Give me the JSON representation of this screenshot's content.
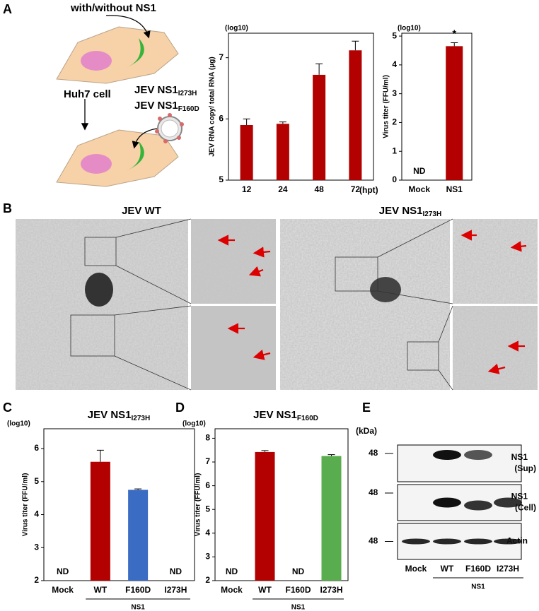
{
  "panels": {
    "a": "A",
    "b": "B",
    "c": "C",
    "d": "D",
    "e": "E"
  },
  "schematic": {
    "top_label": "with/without NS1",
    "cell_label": "Huh7 cell",
    "virus_1": {
      "main": "JEV NS1",
      "sub": "I273H"
    },
    "virus_2": {
      "main": "JEV NS1",
      "sub": "F160D"
    }
  },
  "chart_data": [
    {
      "type": "bar",
      "y_unit": "(log10)",
      "ylabel": "JEV RNA copy/ total RNA (μg)",
      "xlabel": "(hpt)",
      "categories": [
        "12",
        "24",
        "48",
        "72"
      ],
      "values": [
        5.9,
        5.92,
        6.72,
        7.12
      ],
      "errors": [
        0.1,
        0.03,
        0.18,
        0.15
      ],
      "colors": [
        "#b30000",
        "#b30000",
        "#b30000",
        "#b30000"
      ],
      "ylim": [
        5,
        7.4
      ],
      "yticks": [
        5,
        6,
        7
      ]
    },
    {
      "type": "bar",
      "y_unit": "(log10)",
      "ylabel": "Virus titer (FFU/ml)",
      "categories": [
        "Mock",
        "NS1"
      ],
      "values": [
        null,
        4.65
      ],
      "errors": [
        null,
        0.12
      ],
      "missing_label": "ND",
      "significance_marks": [
        null,
        "*"
      ],
      "colors": [
        "#b30000",
        "#b30000"
      ],
      "ylim": [
        0,
        5.1
      ],
      "yticks": [
        0,
        1,
        2,
        3,
        4,
        5
      ]
    },
    {
      "type": "bar",
      "title": {
        "main": "JEV NS1",
        "sub": "I273H"
      },
      "y_unit": "(log10)",
      "ylabel": "Virus titer (FFU/ml)",
      "categories": [
        "Mock",
        "WT",
        "F160D",
        "I273H"
      ],
      "values": [
        null,
        5.6,
        4.75,
        null
      ],
      "errors": [
        null,
        0.35,
        0.03,
        null
      ],
      "missing_label": "ND",
      "group_label": "NS1",
      "colors": [
        "#b30000",
        "#b30000",
        "#3b6cc4",
        "#5aad4e"
      ],
      "ylim": [
        2,
        6.6
      ],
      "yticks": [
        2,
        3,
        4,
        5,
        6
      ]
    },
    {
      "type": "bar",
      "title": {
        "main": "JEV NS1",
        "sub": "F160D"
      },
      "y_unit": "(log10)",
      "ylabel": "Virus titer (FFU/ml)",
      "categories": [
        "Mock",
        "WT",
        "F160D",
        "I273H"
      ],
      "values": [
        null,
        7.42,
        null,
        7.25
      ],
      "errors": [
        null,
        0.06,
        null,
        0.06
      ],
      "missing_label": "ND",
      "group_label": "NS1",
      "colors": [
        "#b30000",
        "#b30000",
        "#3b6cc4",
        "#5aad4e"
      ],
      "ylim": [
        2,
        8.4
      ],
      "yticks": [
        2,
        3,
        4,
        5,
        6,
        7,
        8
      ]
    }
  ],
  "em": {
    "title_1": "JEV WT",
    "title_2": {
      "main": "JEV NS1",
      "sub": "I273H"
    }
  },
  "western_blot": {
    "unit": "(kDa)",
    "lanes": [
      "Mock",
      "WT",
      "F160D",
      "I273H"
    ],
    "group_label": "NS1",
    "rows": [
      {
        "marker": "48",
        "label": "NS1",
        "sub": "(Sup)"
      },
      {
        "marker": "48",
        "label": "NS1",
        "sub": "(Cell)"
      },
      {
        "marker": "48",
        "label": "Actin"
      }
    ]
  }
}
